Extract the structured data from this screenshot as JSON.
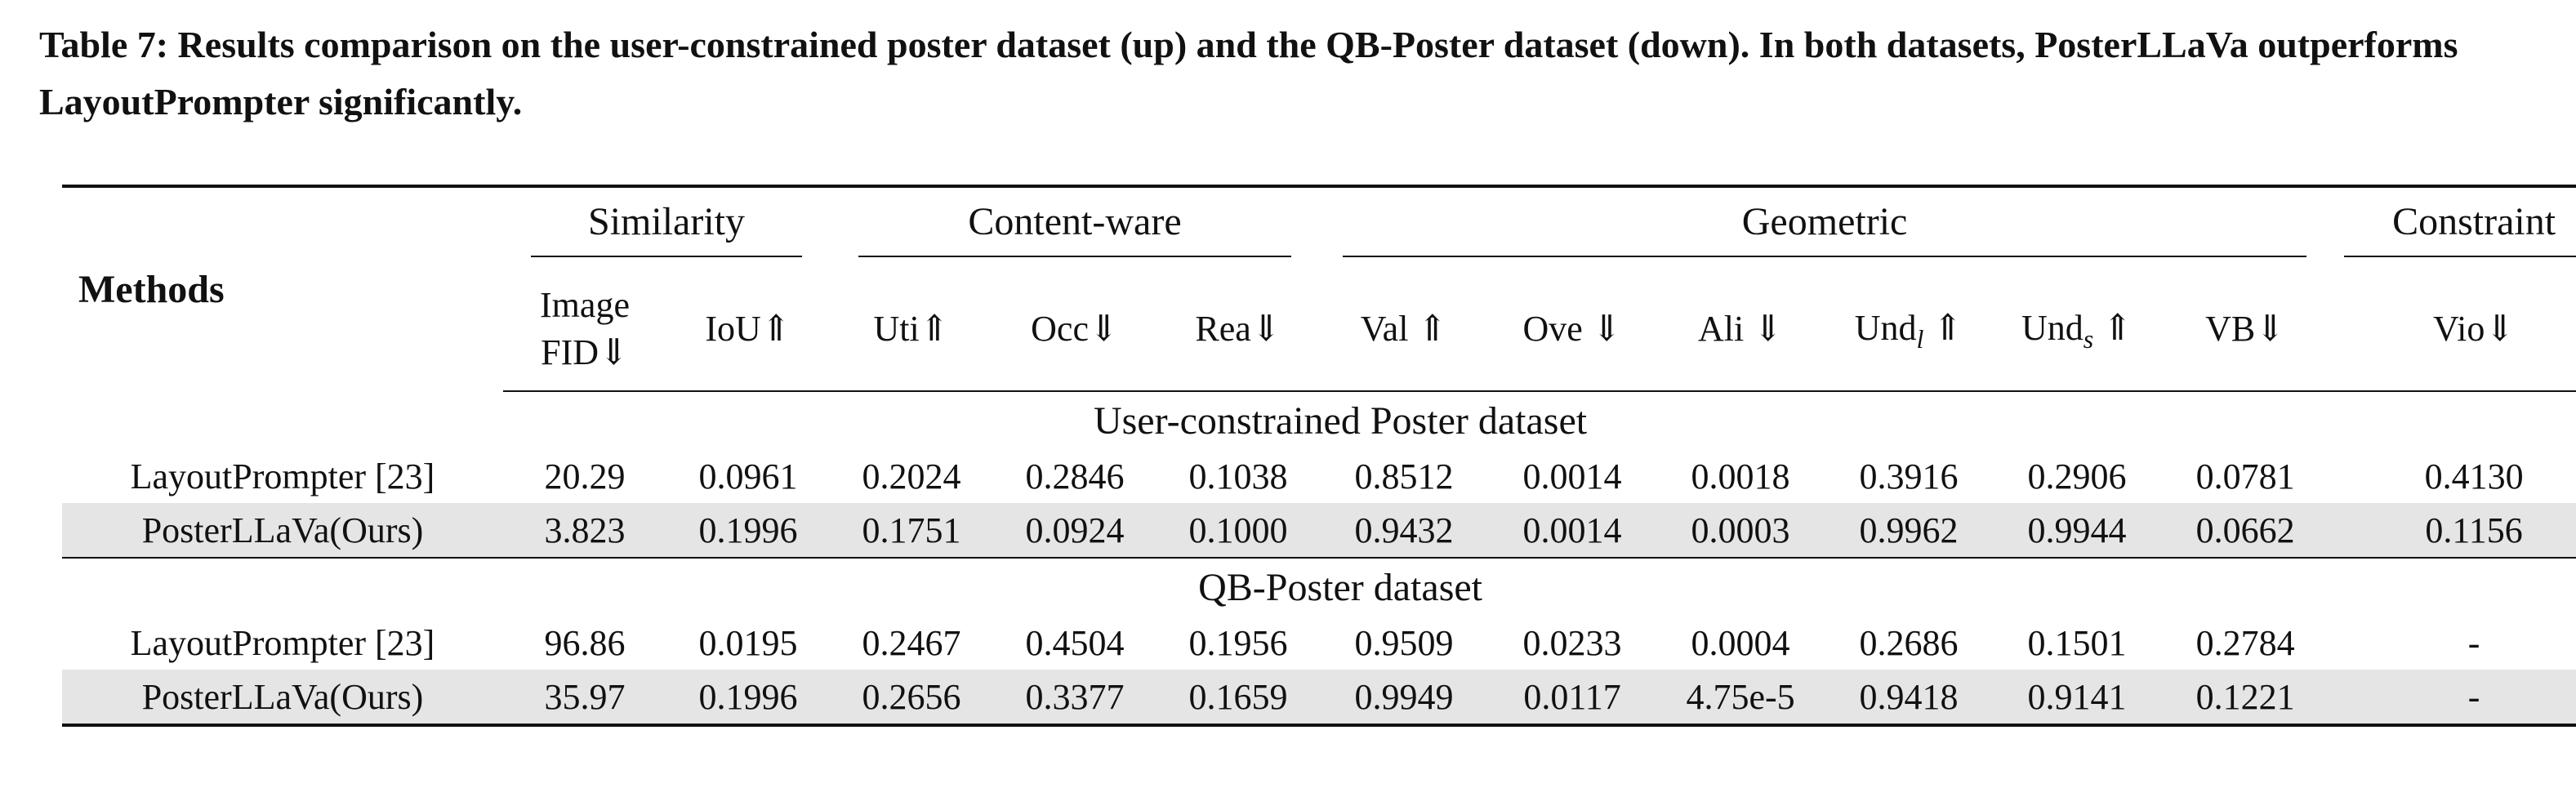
{
  "caption": "Table 7: Results comparison on the user-constrained poster dataset (up) and the QB-Poster dataset (down). In both datasets, PosterLLaVa outperforms LayoutPrompter significantly.",
  "table": {
    "methods_header": "Methods",
    "groups": {
      "similarity": "Similarity",
      "content": "Content-ware",
      "geometric": "Geometric",
      "constraint": "Constraint"
    },
    "metrics": {
      "fid_line1": "Image",
      "fid_line2": "FID⇓",
      "iou": "IoU⇑",
      "uti": "Uti⇑",
      "occ": "Occ⇓",
      "rea": "Rea⇓",
      "val": "Val ⇑",
      "ove": "Ove ⇓",
      "ali": "Ali ⇓",
      "undl_base": "Und",
      "undl_sub": "l",
      "undl_arrow": " ⇑",
      "unds_base": "Und",
      "unds_sub": "s",
      "unds_arrow": " ⇑",
      "vb": "VB⇓",
      "vio": "Vio⇓"
    },
    "sections": [
      {
        "title": "User-constrained Poster dataset",
        "rows": [
          {
            "method": "LayoutPrompter [23]",
            "values": [
              "20.29",
              "0.0961",
              "0.2024",
              "0.2846",
              "0.1038",
              "0.8512",
              "0.0014",
              "0.0018",
              "0.3916",
              "0.2906",
              "0.0781",
              "0.4130"
            ]
          },
          {
            "method": "PosterLLaVa(Ours)",
            "values": [
              "3.823",
              "0.1996",
              "0.1751",
              "0.0924",
              "0.1000",
              "0.9432",
              "0.0014",
              "0.0003",
              "0.9962",
              "0.9944",
              "0.0662",
              "0.1156"
            ]
          }
        ]
      },
      {
        "title": "QB-Poster dataset",
        "rows": [
          {
            "method": "LayoutPrompter [23]",
            "values": [
              "96.86",
              "0.0195",
              "0.2467",
              "0.4504",
              "0.1956",
              "0.9509",
              "0.0233",
              "0.0004",
              "0.2686",
              "0.1501",
              "0.2784",
              "-"
            ]
          },
          {
            "method": "PosterLLaVa(Ours)",
            "values": [
              "35.97",
              "0.1996",
              "0.2656",
              "0.3377",
              "0.1659",
              "0.9949",
              "0.0117",
              "4.75e-5",
              "0.9418",
              "0.9141",
              "0.1221",
              "-"
            ]
          }
        ]
      }
    ]
  }
}
